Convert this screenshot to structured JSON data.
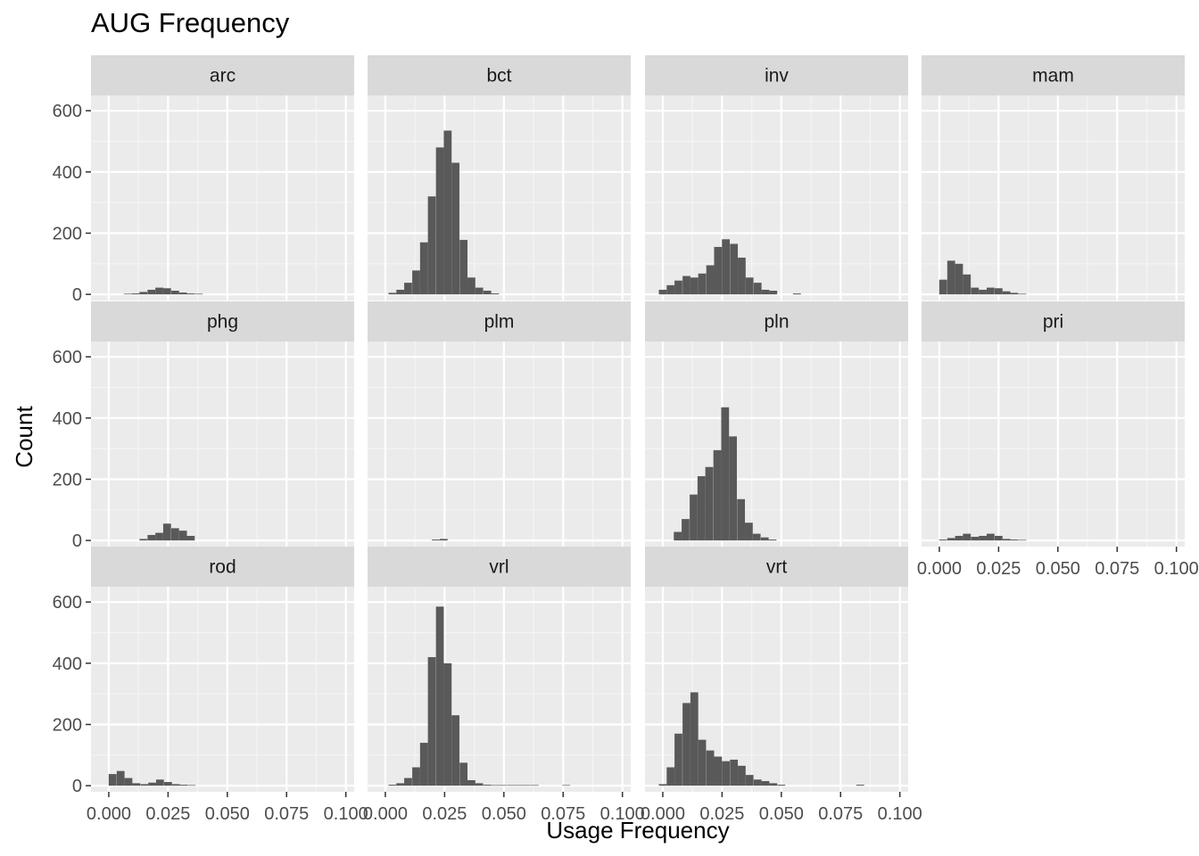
{
  "chart_data": {
    "type": "bar",
    "title": "AUG Frequency",
    "xlabel": "Usage Frequency",
    "ylabel": "Count",
    "xlim": [
      -0.0075,
      0.1035
    ],
    "ylim": [
      -20,
      650
    ],
    "x_ticks": [
      0.0,
      0.025,
      0.05,
      0.075,
      0.1
    ],
    "x_tick_labels": [
      "0.000",
      "0.025",
      "0.050",
      "0.075",
      "0.100"
    ],
    "y_ticks": [
      0,
      200,
      400,
      600
    ],
    "y_tick_labels": [
      "0",
      "200",
      "400",
      "600"
    ],
    "bin_width": 0.0033,
    "grid": true,
    "legend": "none",
    "bar_color": "#595959",
    "panel_background": "#ebebeb",
    "strip_background": "#d9d9d9",
    "facets": [
      {
        "name": "arc",
        "bins": [
          {
            "x": 0.008,
            "count": 2
          },
          {
            "x": 0.0113,
            "count": 3
          },
          {
            "x": 0.0146,
            "count": 8
          },
          {
            "x": 0.018,
            "count": 15
          },
          {
            "x": 0.0213,
            "count": 22
          },
          {
            "x": 0.0246,
            "count": 20
          },
          {
            "x": 0.028,
            "count": 12
          },
          {
            "x": 0.0313,
            "count": 6
          },
          {
            "x": 0.0346,
            "count": 3
          },
          {
            "x": 0.038,
            "count": 2
          }
        ]
      },
      {
        "name": "bct",
        "bins": [
          {
            "x": 0.003,
            "count": 5
          },
          {
            "x": 0.0063,
            "count": 15
          },
          {
            "x": 0.0096,
            "count": 38
          },
          {
            "x": 0.013,
            "count": 78
          },
          {
            "x": 0.0163,
            "count": 170
          },
          {
            "x": 0.0196,
            "count": 320
          },
          {
            "x": 0.023,
            "count": 480
          },
          {
            "x": 0.0263,
            "count": 535
          },
          {
            "x": 0.0296,
            "count": 430
          },
          {
            "x": 0.033,
            "count": 178
          },
          {
            "x": 0.0363,
            "count": 55
          },
          {
            "x": 0.0396,
            "count": 22
          },
          {
            "x": 0.043,
            "count": 12
          },
          {
            "x": 0.0463,
            "count": 3
          }
        ]
      },
      {
        "name": "inv",
        "bins": [
          {
            "x": 0.0,
            "count": 15
          },
          {
            "x": 0.0033,
            "count": 30
          },
          {
            "x": 0.0066,
            "count": 45
          },
          {
            "x": 0.01,
            "count": 60
          },
          {
            "x": 0.0133,
            "count": 55
          },
          {
            "x": 0.0166,
            "count": 68
          },
          {
            "x": 0.02,
            "count": 95
          },
          {
            "x": 0.0233,
            "count": 155
          },
          {
            "x": 0.0266,
            "count": 180
          },
          {
            "x": 0.03,
            "count": 165
          },
          {
            "x": 0.0333,
            "count": 120
          },
          {
            "x": 0.0366,
            "count": 55
          },
          {
            "x": 0.04,
            "count": 38
          },
          {
            "x": 0.0433,
            "count": 15
          },
          {
            "x": 0.0466,
            "count": 12
          },
          {
            "x": 0.0566,
            "count": 3
          }
        ]
      },
      {
        "name": "mam",
        "bins": [
          {
            "x": 0.0016,
            "count": 48
          },
          {
            "x": 0.005,
            "count": 110
          },
          {
            "x": 0.0083,
            "count": 100
          },
          {
            "x": 0.0116,
            "count": 65
          },
          {
            "x": 0.015,
            "count": 22
          },
          {
            "x": 0.0183,
            "count": 15
          },
          {
            "x": 0.0216,
            "count": 22
          },
          {
            "x": 0.025,
            "count": 20
          },
          {
            "x": 0.0283,
            "count": 10
          },
          {
            "x": 0.0316,
            "count": 5
          },
          {
            "x": 0.035,
            "count": 2
          }
        ]
      },
      {
        "name": "phg",
        "bins": [
          {
            "x": 0.0146,
            "count": 5
          },
          {
            "x": 0.018,
            "count": 18
          },
          {
            "x": 0.0213,
            "count": 25
          },
          {
            "x": 0.0246,
            "count": 55
          },
          {
            "x": 0.028,
            "count": 40
          },
          {
            "x": 0.0313,
            "count": 32
          },
          {
            "x": 0.0346,
            "count": 15
          }
        ]
      },
      {
        "name": "plm",
        "bins": [
          {
            "x": 0.0213,
            "count": 3
          },
          {
            "x": 0.0246,
            "count": 5
          }
        ]
      },
      {
        "name": "pln",
        "bins": [
          {
            "x": 0.0063,
            "count": 28
          },
          {
            "x": 0.0096,
            "count": 70
          },
          {
            "x": 0.013,
            "count": 150
          },
          {
            "x": 0.0163,
            "count": 210
          },
          {
            "x": 0.0196,
            "count": 240
          },
          {
            "x": 0.023,
            "count": 295
          },
          {
            "x": 0.0263,
            "count": 435
          },
          {
            "x": 0.0296,
            "count": 340
          },
          {
            "x": 0.033,
            "count": 135
          },
          {
            "x": 0.0363,
            "count": 58
          },
          {
            "x": 0.0396,
            "count": 22
          },
          {
            "x": 0.043,
            "count": 10
          },
          {
            "x": 0.0463,
            "count": 3
          }
        ]
      },
      {
        "name": "pri",
        "bins": [
          {
            "x": 0.0016,
            "count": 3
          },
          {
            "x": 0.005,
            "count": 8
          },
          {
            "x": 0.0083,
            "count": 15
          },
          {
            "x": 0.0116,
            "count": 22
          },
          {
            "x": 0.015,
            "count": 12
          },
          {
            "x": 0.0183,
            "count": 15
          },
          {
            "x": 0.0216,
            "count": 22
          },
          {
            "x": 0.025,
            "count": 15
          },
          {
            "x": 0.0283,
            "count": 5
          },
          {
            "x": 0.0316,
            "count": 3
          },
          {
            "x": 0.035,
            "count": 2
          }
        ]
      },
      {
        "name": "rod",
        "bins": [
          {
            "x": 0.0016,
            "count": 38
          },
          {
            "x": 0.005,
            "count": 48
          },
          {
            "x": 0.0083,
            "count": 25
          },
          {
            "x": 0.0116,
            "count": 8
          },
          {
            "x": 0.015,
            "count": 5
          },
          {
            "x": 0.0183,
            "count": 10
          },
          {
            "x": 0.0216,
            "count": 20
          },
          {
            "x": 0.025,
            "count": 12
          },
          {
            "x": 0.0283,
            "count": 5
          },
          {
            "x": 0.0316,
            "count": 3
          },
          {
            "x": 0.035,
            "count": 2
          }
        ]
      },
      {
        "name": "vrl",
        "bins": [
          {
            "x": 0.003,
            "count": 3
          },
          {
            "x": 0.0063,
            "count": 8
          },
          {
            "x": 0.0096,
            "count": 25
          },
          {
            "x": 0.013,
            "count": 60
          },
          {
            "x": 0.0163,
            "count": 140
          },
          {
            "x": 0.0196,
            "count": 420
          },
          {
            "x": 0.023,
            "count": 585
          },
          {
            "x": 0.0263,
            "count": 400
          },
          {
            "x": 0.0296,
            "count": 230
          },
          {
            "x": 0.033,
            "count": 75
          },
          {
            "x": 0.0363,
            "count": 18
          },
          {
            "x": 0.0396,
            "count": 8
          },
          {
            "x": 0.043,
            "count": 3
          },
          {
            "x": 0.0463,
            "count": 2
          },
          {
            "x": 0.0496,
            "count": 2
          },
          {
            "x": 0.053,
            "count": 2
          },
          {
            "x": 0.0563,
            "count": 2
          },
          {
            "x": 0.0596,
            "count": 2
          },
          {
            "x": 0.063,
            "count": 2
          },
          {
            "x": 0.0763,
            "count": 2
          }
        ]
      },
      {
        "name": "vrt",
        "bins": [
          {
            "x": 0.0,
            "count": 5
          },
          {
            "x": 0.0033,
            "count": 60
          },
          {
            "x": 0.0066,
            "count": 170
          },
          {
            "x": 0.01,
            "count": 270
          },
          {
            "x": 0.0133,
            "count": 305
          },
          {
            "x": 0.0166,
            "count": 150
          },
          {
            "x": 0.02,
            "count": 115
          },
          {
            "x": 0.0233,
            "count": 95
          },
          {
            "x": 0.0266,
            "count": 80
          },
          {
            "x": 0.03,
            "count": 85
          },
          {
            "x": 0.0333,
            "count": 65
          },
          {
            "x": 0.0366,
            "count": 35
          },
          {
            "x": 0.04,
            "count": 20
          },
          {
            "x": 0.0433,
            "count": 15
          },
          {
            "x": 0.0466,
            "count": 8
          },
          {
            "x": 0.05,
            "count": 3
          },
          {
            "x": 0.0833,
            "count": 3
          }
        ]
      }
    ]
  }
}
